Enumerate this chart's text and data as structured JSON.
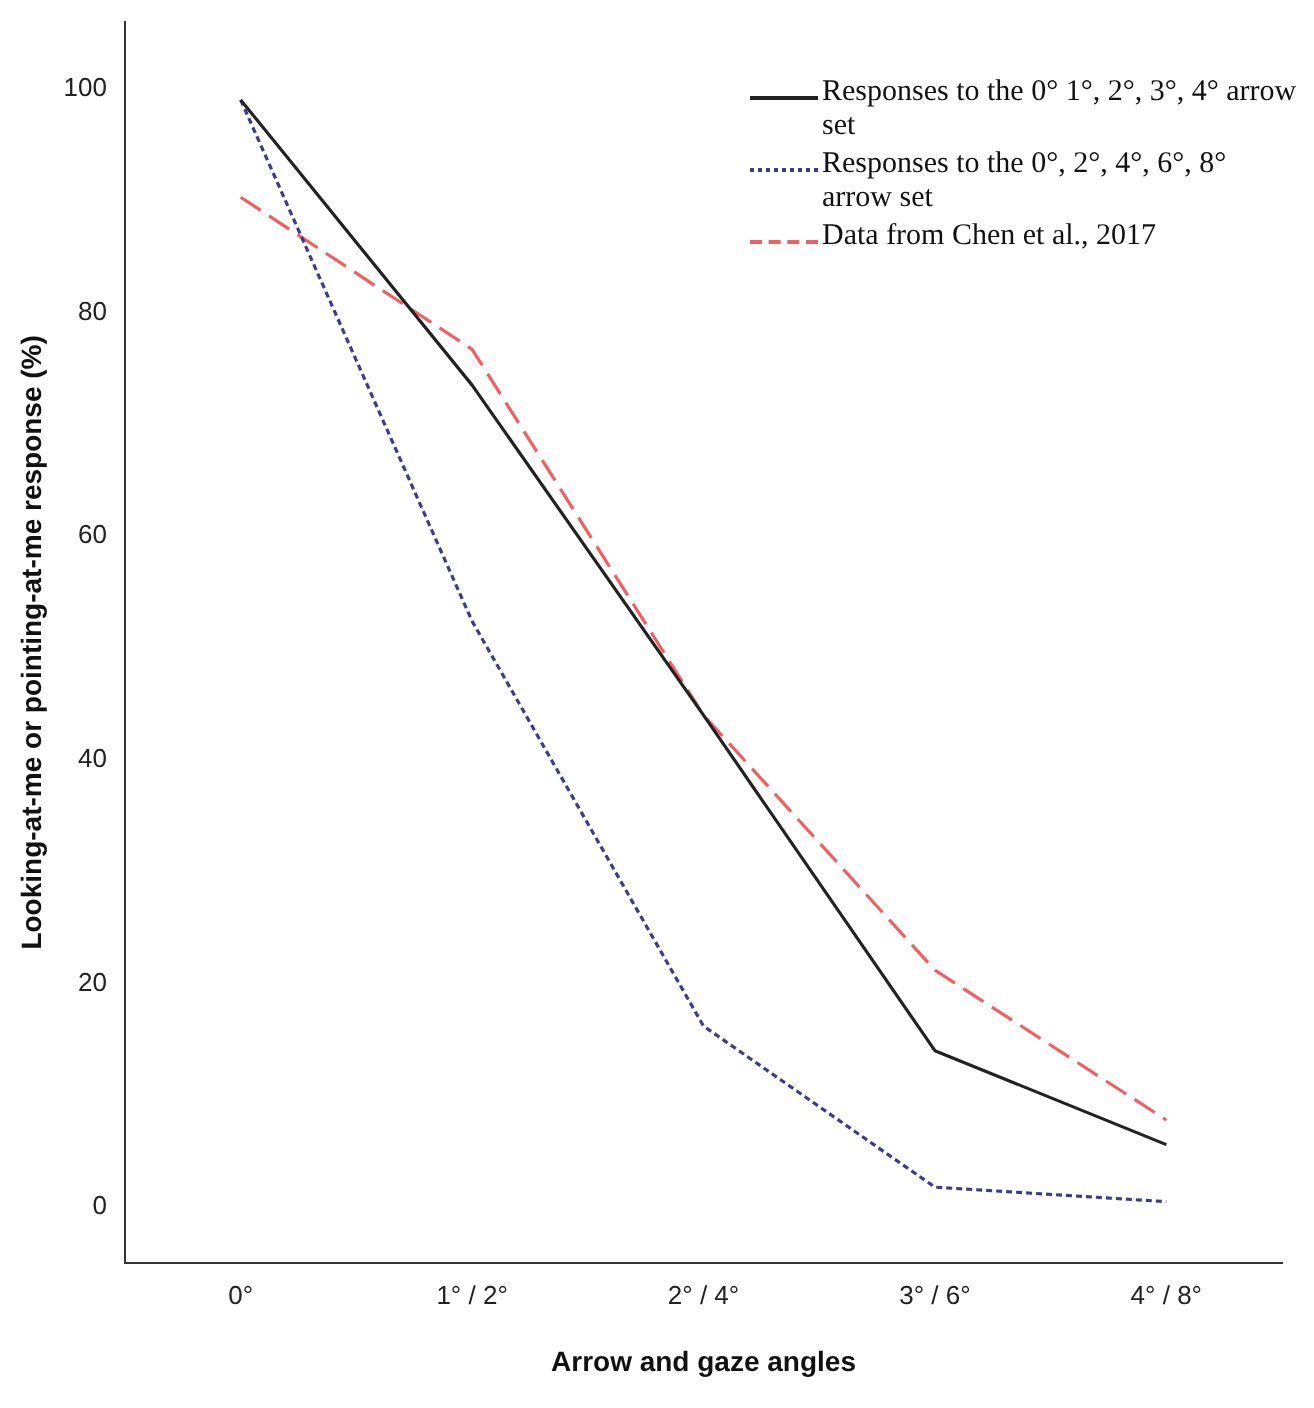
{
  "chart_data": {
    "type": "line",
    "xlabel": "Arrow and gaze angles",
    "ylabel": "Looking-at-me or pointing-at-me response (%)",
    "categories": [
      "0°",
      "1° / 2°",
      "2° / 4°",
      "3° / 6°",
      "4° / 8°"
    ],
    "series": [
      {
        "name": "Responses to the 0° 1°, 2°, 3°, 4° arrow set",
        "color": "#222222",
        "line_style": "solid",
        "values": [
          99,
          73.5,
          44,
          14,
          5.6
        ]
      },
      {
        "name": "Responses to the 0°, 2°, 4°, 6°, 8° arrow set",
        "color": "#3c3c8c",
        "line_style": "dotted",
        "values": [
          99,
          52.4,
          16.2,
          1.8,
          0.5
        ]
      },
      {
        "name": "Data from Chen et al., 2017",
        "color": "#f06060",
        "line_style": "dashed",
        "values": [
          90.3,
          76.7,
          44,
          21.2,
          7.8
        ]
      }
    ],
    "ylim": [
      -5,
      106
    ],
    "yticks": [
      0,
      20,
      40,
      60,
      80,
      100
    ],
    "grid": false,
    "legend": "top right",
    "marker": "none"
  }
}
